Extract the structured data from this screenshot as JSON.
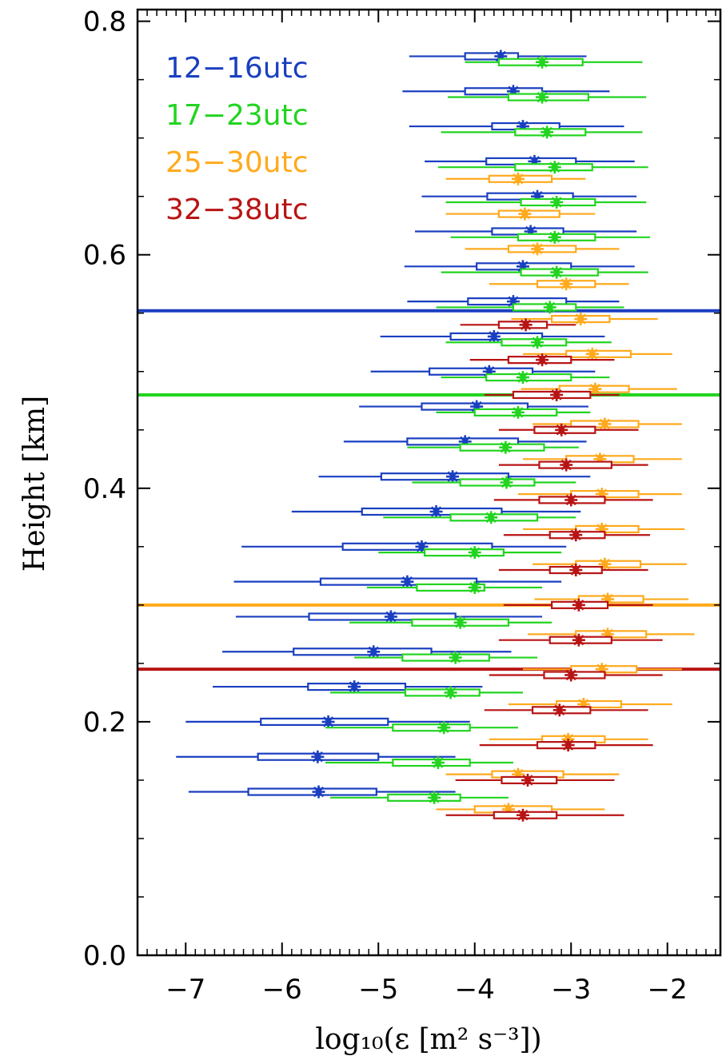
{
  "chart_data": {
    "type": "scatter",
    "title": "",
    "xlabel": "log₁₀(ε [m² s⁻³])",
    "ylabel": "Height [km]",
    "xlim": [
      -7.5,
      -1.45
    ],
    "ylim": [
      0,
      0.81
    ],
    "xticks": [
      -7,
      -6,
      -5,
      -4,
      -3,
      -2
    ],
    "xtick_labels": [
      "−7",
      "−6",
      "−5",
      "−4",
      "−3",
      "−2"
    ],
    "yticks": [
      0.0,
      0.2,
      0.4,
      0.6,
      0.8
    ],
    "ytick_labels": [
      "0.0",
      "0.2",
      "0.4",
      "0.6",
      "0.8"
    ],
    "legend_position": "top-left",
    "marker": "asterisk with box (interquartile range) and whiskers (5–95% range)",
    "series": [
      {
        "name": "12−16utc",
        "color": "#1a3fc0",
        "reference_height": 0.552,
        "points": [
          {
            "y": 0.77,
            "median": -3.73,
            "q1": -4.1,
            "q3": -3.55,
            "lo": -4.68,
            "hi": -2.84
          },
          {
            "y": 0.74,
            "median": -3.6,
            "q1": -4.1,
            "q3": -3.3,
            "lo": -4.75,
            "hi": -2.6
          },
          {
            "y": 0.71,
            "median": -3.5,
            "q1": -3.82,
            "q3": -3.12,
            "lo": -4.68,
            "hi": -2.45
          },
          {
            "y": 0.68,
            "median": -3.38,
            "q1": -3.88,
            "q3": -2.95,
            "lo": -4.52,
            "hi": -2.34
          },
          {
            "y": 0.65,
            "median": -3.35,
            "q1": -3.87,
            "q3": -2.98,
            "lo": -4.55,
            "hi": -2.32
          },
          {
            "y": 0.62,
            "median": -3.42,
            "q1": -3.82,
            "q3": -3.08,
            "lo": -4.62,
            "hi": -2.32
          },
          {
            "y": 0.59,
            "median": -3.5,
            "q1": -3.98,
            "q3": -3.0,
            "lo": -4.73,
            "hi": -2.34
          },
          {
            "y": 0.56,
            "median": -3.6,
            "q1": -4.07,
            "q3": -3.05,
            "lo": -4.7,
            "hi": -2.5
          },
          {
            "y": 0.53,
            "median": -3.8,
            "q1": -4.25,
            "q3": -3.3,
            "lo": -4.98,
            "hi": -2.65
          },
          {
            "y": 0.5,
            "median": -3.85,
            "q1": -4.47,
            "q3": -3.4,
            "lo": -5.08,
            "hi": -2.75
          },
          {
            "y": 0.47,
            "median": -3.98,
            "q1": -4.55,
            "q3": -3.45,
            "lo": -5.2,
            "hi": -2.82
          },
          {
            "y": 0.44,
            "median": -4.1,
            "q1": -4.7,
            "q3": -3.55,
            "lo": -5.36,
            "hi": -2.84
          },
          {
            "y": 0.41,
            "median": -4.23,
            "q1": -4.97,
            "q3": -3.65,
            "lo": -5.62,
            "hi": -2.8
          },
          {
            "y": 0.38,
            "median": -4.4,
            "q1": -5.17,
            "q3": -3.72,
            "lo": -5.9,
            "hi": -2.9
          },
          {
            "y": 0.35,
            "median": -4.55,
            "q1": -5.37,
            "q3": -3.82,
            "lo": -6.42,
            "hi": -3.05
          },
          {
            "y": 0.32,
            "median": -4.7,
            "q1": -5.6,
            "q3": -3.98,
            "lo": -6.5,
            "hi": -3.1
          },
          {
            "y": 0.29,
            "median": -4.87,
            "q1": -5.72,
            "q3": -4.2,
            "lo": -6.48,
            "hi": -3.3
          },
          {
            "y": 0.26,
            "median": -5.05,
            "q1": -5.88,
            "q3": -4.45,
            "lo": -6.62,
            "hi": -3.62
          },
          {
            "y": 0.23,
            "median": -5.25,
            "q1": -5.73,
            "q3": -4.72,
            "lo": -6.72,
            "hi": -3.92
          },
          {
            "y": 0.2,
            "median": -5.52,
            "q1": -6.22,
            "q3": -4.9,
            "lo": -7.0,
            "hi": -4.05
          },
          {
            "y": 0.17,
            "median": -5.63,
            "q1": -6.25,
            "q3": -5.0,
            "lo": -7.1,
            "hi": -4.2
          },
          {
            "y": 0.14,
            "median": -5.62,
            "q1": -6.35,
            "q3": -5.02,
            "lo": -6.97,
            "hi": -4.2
          }
        ]
      },
      {
        "name": "17−23utc",
        "color": "#22d420",
        "reference_height": 0.48,
        "points": [
          {
            "y": 0.765,
            "median": -3.3,
            "q1": -3.75,
            "q3": -2.88,
            "lo": -4.1,
            "hi": -2.26
          },
          {
            "y": 0.735,
            "median": -3.3,
            "q1": -3.65,
            "q3": -2.82,
            "lo": -4.28,
            "hi": -2.22
          },
          {
            "y": 0.705,
            "median": -3.25,
            "q1": -3.58,
            "q3": -2.85,
            "lo": -4.35,
            "hi": -2.26
          },
          {
            "y": 0.675,
            "median": -3.17,
            "q1": -3.58,
            "q3": -2.78,
            "lo": -4.38,
            "hi": -2.2
          },
          {
            "y": 0.645,
            "median": -3.15,
            "q1": -3.52,
            "q3": -2.75,
            "lo": -4.3,
            "hi": -2.22
          },
          {
            "y": 0.615,
            "median": -3.17,
            "q1": -3.55,
            "q3": -2.75,
            "lo": -4.25,
            "hi": -2.18
          },
          {
            "y": 0.585,
            "median": -3.15,
            "q1": -3.52,
            "q3": -2.72,
            "lo": -4.35,
            "hi": -2.2
          },
          {
            "y": 0.555,
            "median": -3.22,
            "q1": -3.6,
            "q3": -2.95,
            "lo": -4.4,
            "hi": -2.45
          },
          {
            "y": 0.525,
            "median": -3.35,
            "q1": -3.72,
            "q3": -3.05,
            "lo": -4.3,
            "hi": -2.58
          },
          {
            "y": 0.495,
            "median": -3.5,
            "q1": -3.88,
            "q3": -3.0,
            "lo": -4.35,
            "hi": -2.6
          },
          {
            "y": 0.465,
            "median": -3.55,
            "q1": -4.0,
            "q3": -3.15,
            "lo": -4.4,
            "hi": -2.8
          },
          {
            "y": 0.435,
            "median": -3.68,
            "q1": -4.15,
            "q3": -3.28,
            "lo": -4.7,
            "hi": -2.92
          },
          {
            "y": 0.405,
            "median": -3.67,
            "q1": -4.15,
            "q3": -3.38,
            "lo": -4.65,
            "hi": -2.95
          },
          {
            "y": 0.375,
            "median": -3.83,
            "q1": -4.25,
            "q3": -3.35,
            "lo": -4.95,
            "hi": -2.95
          },
          {
            "y": 0.345,
            "median": -4.0,
            "q1": -4.52,
            "q3": -3.7,
            "lo": -5.0,
            "hi": -3.1
          },
          {
            "y": 0.315,
            "median": -4.0,
            "q1": -4.6,
            "q3": -3.9,
            "lo": -5.12,
            "hi": -3.3
          },
          {
            "y": 0.285,
            "median": -4.15,
            "q1": -4.65,
            "q3": -3.65,
            "lo": -5.3,
            "hi": -3.2
          },
          {
            "y": 0.255,
            "median": -4.2,
            "q1": -4.75,
            "q3": -3.85,
            "lo": -5.25,
            "hi": -3.35
          },
          {
            "y": 0.225,
            "median": -4.25,
            "q1": -4.72,
            "q3": -3.95,
            "lo": -5.5,
            "hi": -3.5
          },
          {
            "y": 0.195,
            "median": -4.32,
            "q1": -4.85,
            "q3": -4.05,
            "lo": -5.55,
            "hi": -3.55
          },
          {
            "y": 0.165,
            "median": -4.38,
            "q1": -4.85,
            "q3": -4.05,
            "lo": -5.55,
            "hi": -3.6
          },
          {
            "y": 0.135,
            "median": -4.42,
            "q1": -4.9,
            "q3": -4.15,
            "lo": -5.5,
            "hi": -3.65
          }
        ]
      },
      {
        "name": "25−30utc",
        "color": "#ffaa1d",
        "reference_height": 0.3,
        "points": [
          {
            "y": 0.665,
            "median": -3.55,
            "q1": -3.85,
            "q3": -3.2,
            "lo": -4.3,
            "hi": -2.85
          },
          {
            "y": 0.635,
            "median": -3.48,
            "q1": -3.75,
            "q3": -3.12,
            "lo": -4.3,
            "hi": -2.75
          },
          {
            "y": 0.605,
            "median": -3.35,
            "q1": -3.65,
            "q3": -2.95,
            "lo": -4.1,
            "hi": -2.5
          },
          {
            "y": 0.575,
            "median": -3.05,
            "q1": -3.35,
            "q3": -2.75,
            "lo": -3.85,
            "hi": -2.4
          },
          {
            "y": 0.545,
            "median": -2.9,
            "q1": -3.2,
            "q3": -2.6,
            "lo": -3.62,
            "hi": -2.1
          },
          {
            "y": 0.515,
            "median": -2.78,
            "q1": -3.05,
            "q3": -2.38,
            "lo": -3.5,
            "hi": -1.95
          },
          {
            "y": 0.485,
            "median": -2.75,
            "q1": -3.12,
            "q3": -2.4,
            "lo": -3.52,
            "hi": -1.9
          },
          {
            "y": 0.455,
            "median": -2.65,
            "q1": -3.0,
            "q3": -2.3,
            "lo": -3.4,
            "hi": -1.85
          },
          {
            "y": 0.425,
            "median": -2.7,
            "q1": -3.05,
            "q3": -2.35,
            "lo": -3.5,
            "hi": -1.85
          },
          {
            "y": 0.395,
            "median": -2.68,
            "q1": -3.0,
            "q3": -2.3,
            "lo": -3.55,
            "hi": -1.85
          },
          {
            "y": 0.365,
            "median": -2.68,
            "q1": -2.95,
            "q3": -2.3,
            "lo": -3.5,
            "hi": -1.82
          },
          {
            "y": 0.335,
            "median": -2.65,
            "q1": -2.95,
            "q3": -2.28,
            "lo": -3.4,
            "hi": -1.8
          },
          {
            "y": 0.305,
            "median": -2.62,
            "q1": -2.92,
            "q3": -2.25,
            "lo": -3.38,
            "hi": -1.78
          },
          {
            "y": 0.275,
            "median": -2.62,
            "q1": -2.95,
            "q3": -2.22,
            "lo": -3.45,
            "hi": -1.72
          },
          {
            "y": 0.245,
            "median": -2.68,
            "q1": -3.0,
            "q3": -2.32,
            "lo": -3.5,
            "hi": -1.85
          },
          {
            "y": 0.215,
            "median": -2.87,
            "q1": -3.15,
            "q3": -2.48,
            "lo": -3.65,
            "hi": -1.95
          },
          {
            "y": 0.185,
            "median": -3.03,
            "q1": -3.3,
            "q3": -2.65,
            "lo": -3.85,
            "hi": -2.2
          },
          {
            "y": 0.155,
            "median": -3.55,
            "q1": -3.82,
            "q3": -3.08,
            "lo": -4.3,
            "hi": -2.5
          },
          {
            "y": 0.125,
            "median": -3.65,
            "q1": -4.0,
            "q3": -3.2,
            "lo": -4.4,
            "hi": -2.65
          }
        ]
      },
      {
        "name": "32−38utc",
        "color": "#b81414",
        "reference_height": 0.245,
        "points": [
          {
            "y": 0.54,
            "median": -3.47,
            "q1": -3.75,
            "q3": -3.25,
            "lo": -4.15,
            "hi": -2.95
          },
          {
            "y": 0.51,
            "median": -3.3,
            "q1": -3.65,
            "q3": -3.0,
            "lo": -4.05,
            "hi": -2.55
          },
          {
            "y": 0.48,
            "median": -3.15,
            "q1": -3.6,
            "q3": -2.8,
            "lo": -3.9,
            "hi": -2.5
          },
          {
            "y": 0.45,
            "median": -3.1,
            "q1": -3.38,
            "q3": -2.75,
            "lo": -3.75,
            "hi": -2.3
          },
          {
            "y": 0.42,
            "median": -3.05,
            "q1": -3.33,
            "q3": -2.58,
            "lo": -3.75,
            "hi": -2.2
          },
          {
            "y": 0.39,
            "median": -3.0,
            "q1": -3.33,
            "q3": -2.65,
            "lo": -3.8,
            "hi": -2.15
          },
          {
            "y": 0.36,
            "median": -2.95,
            "q1": -3.22,
            "q3": -2.65,
            "lo": -3.7,
            "hi": -2.18
          },
          {
            "y": 0.33,
            "median": -2.95,
            "q1": -3.22,
            "q3": -2.68,
            "lo": -3.75,
            "hi": -2.2
          },
          {
            "y": 0.3,
            "median": -2.92,
            "q1": -3.2,
            "q3": -2.62,
            "lo": -3.7,
            "hi": -2.15
          },
          {
            "y": 0.27,
            "median": -2.92,
            "q1": -3.22,
            "q3": -2.58,
            "lo": -3.75,
            "hi": -2.05
          },
          {
            "y": 0.24,
            "median": -3.0,
            "q1": -3.28,
            "q3": -2.65,
            "lo": -3.85,
            "hi": -2.05
          },
          {
            "y": 0.21,
            "median": -3.12,
            "q1": -3.4,
            "q3": -2.8,
            "lo": -3.9,
            "hi": -2.2
          },
          {
            "y": 0.18,
            "median": -3.03,
            "q1": -3.35,
            "q3": -2.75,
            "lo": -3.95,
            "hi": -2.15
          },
          {
            "y": 0.15,
            "median": -3.45,
            "q1": -3.72,
            "q3": -3.15,
            "lo": -4.2,
            "hi": -2.55
          },
          {
            "y": 0.12,
            "median": -3.5,
            "q1": -3.8,
            "q3": -3.15,
            "lo": -4.3,
            "hi": -2.45
          }
        ]
      }
    ]
  }
}
